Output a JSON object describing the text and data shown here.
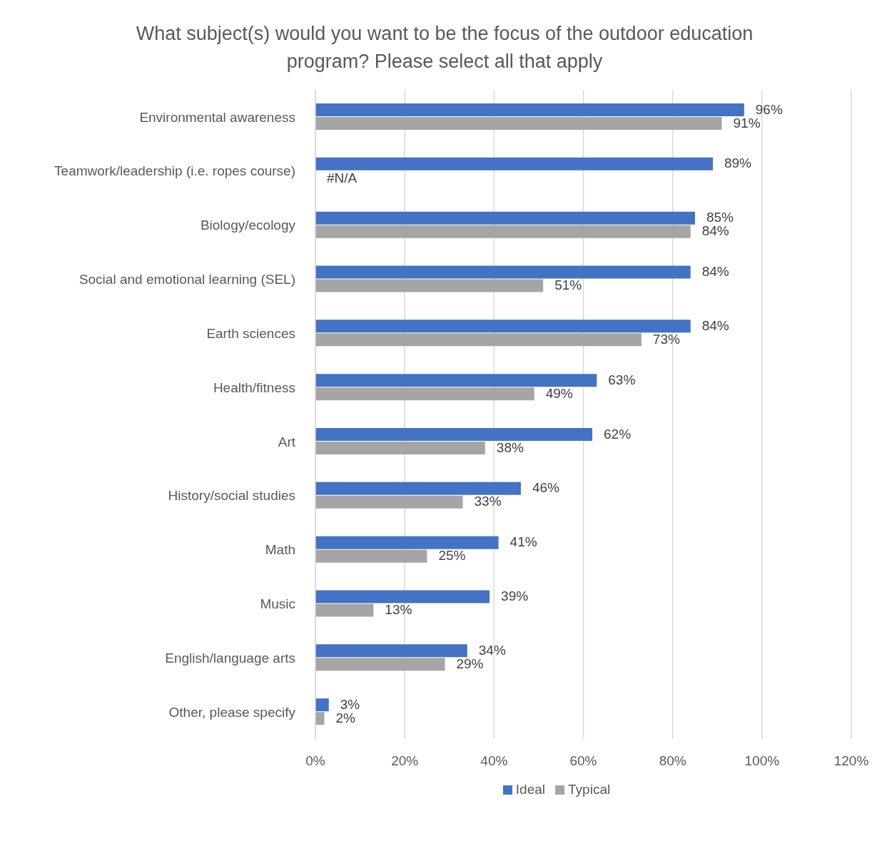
{
  "chart_data": {
    "type": "bar",
    "orientation": "horizontal",
    "title": "What subject(s) would you want to be the focus of the outdoor education program? Please select all that apply",
    "categories": [
      "Environmental awareness",
      "Teamwork/leadership (i.e. ropes course)",
      "Biology/ecology",
      "Social and emotional learning (SEL)",
      "Earth sciences",
      "Health/fitness",
      "Art",
      "History/social studies",
      "Math",
      "Music",
      "English/language arts",
      "Other, please specify"
    ],
    "series": [
      {
        "name": "Ideal",
        "color": "#4472c4",
        "values": [
          96,
          89,
          85,
          84,
          84,
          63,
          62,
          46,
          41,
          39,
          34,
          3
        ],
        "value_labels": [
          "96%",
          "89%",
          "85%",
          "84%",
          "84%",
          "63%",
          "62%",
          "46%",
          "41%",
          "39%",
          "34%",
          "3%"
        ]
      },
      {
        "name": "Typical",
        "color": "#a5a5a5",
        "values": [
          91,
          null,
          84,
          51,
          73,
          49,
          38,
          33,
          25,
          13,
          29,
          2
        ],
        "value_labels": [
          "91%",
          "#N/A",
          "84%",
          "51%",
          "73%",
          "49%",
          "38%",
          "33%",
          "25%",
          "13%",
          "29%",
          "2%"
        ]
      }
    ],
    "xlim": [
      0,
      120
    ],
    "xticks": [
      {
        "value": 0,
        "label": "0%"
      },
      {
        "value": 20,
        "label": "20%"
      },
      {
        "value": 40,
        "label": "40%"
      },
      {
        "value": 60,
        "label": "60%"
      },
      {
        "value": 80,
        "label": "80%"
      },
      {
        "value": 100,
        "label": "100%"
      },
      {
        "value": 120,
        "label": "120%"
      }
    ],
    "grid": "x",
    "legend": "bottom"
  }
}
